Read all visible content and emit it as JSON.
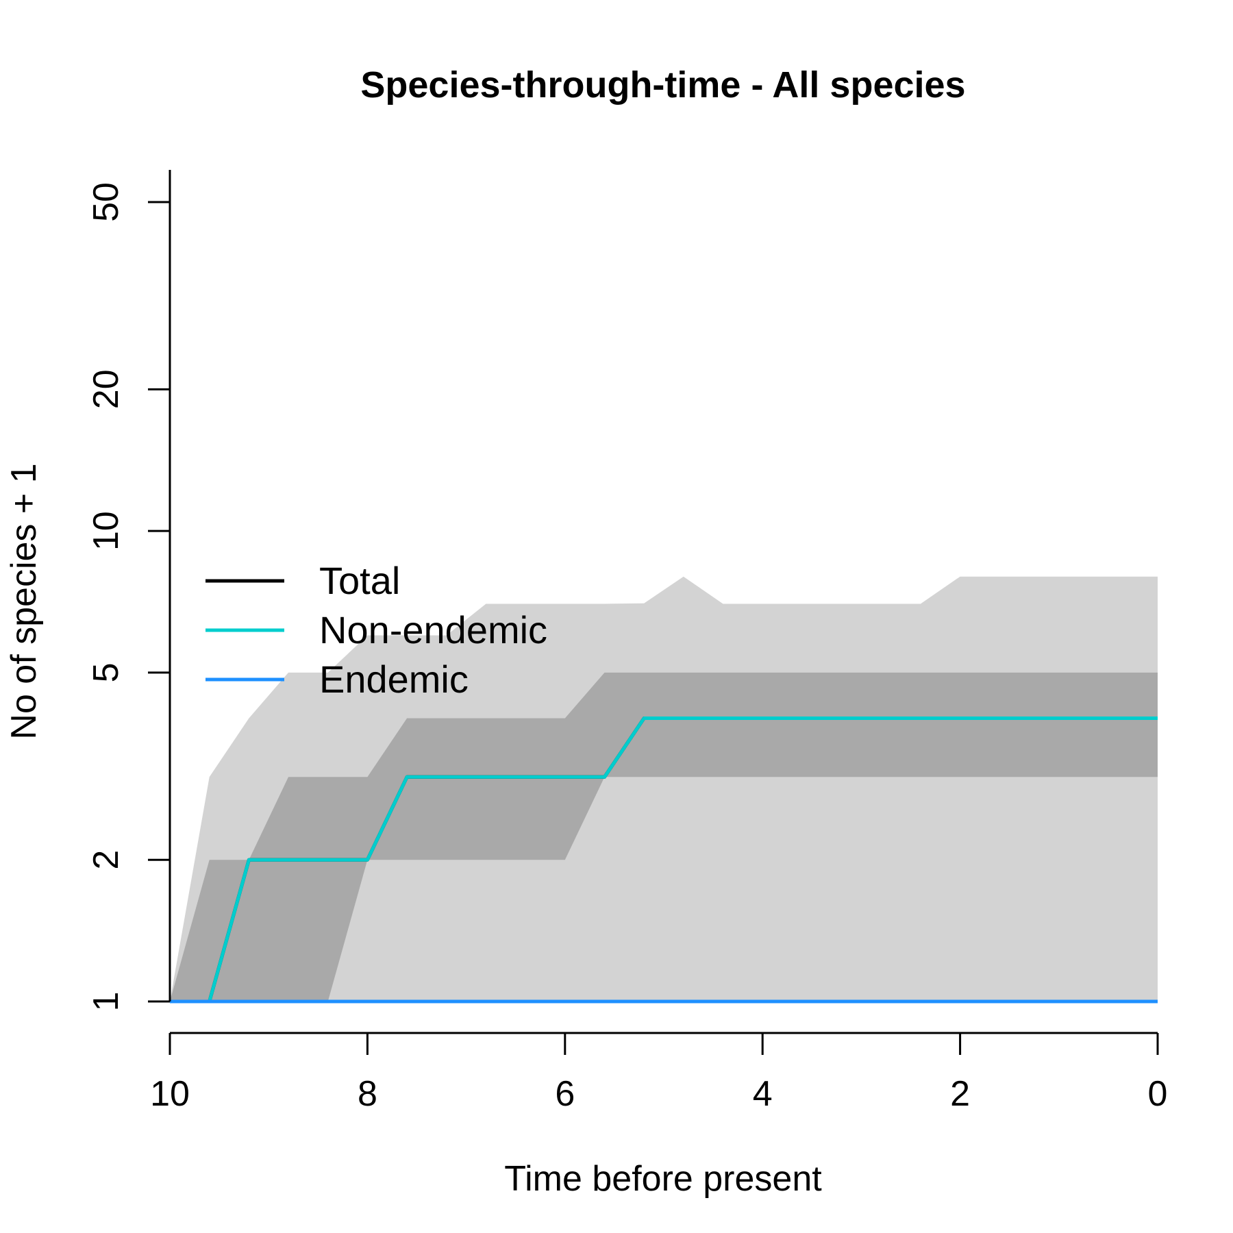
{
  "chart_data": {
    "type": "area",
    "title": "Species-through-time - All species",
    "xlabel": "Time before present",
    "ylabel": "No of species + 1",
    "xlim": [
      10,
      0
    ],
    "ylim": [
      1,
      50
    ],
    "y_scale": "log",
    "x_ticks": [
      10,
      8,
      6,
      4,
      2,
      0
    ],
    "x_tick_labels": [
      "10",
      "8",
      "6",
      "4",
      "2",
      "0"
    ],
    "y_ticks": [
      1,
      2,
      5,
      10,
      20,
      50
    ],
    "y_tick_labels": [
      "1",
      "2",
      "5",
      "10",
      "20",
      "50"
    ],
    "grid": false,
    "legend_position": "middle-left",
    "bands": [
      {
        "role": "outer",
        "color": "#d3d3d3",
        "x": [
          10,
          9.6,
          9.2,
          8.8,
          8.4,
          8.0,
          7.6,
          7.2,
          6.8,
          6.4,
          6.0,
          5.6,
          5.2,
          4.8,
          4.4,
          4.0,
          3.6,
          3.2,
          2.8,
          2.4,
          2.0,
          1.6,
          1.2,
          0.8,
          0.4,
          0.0
        ],
        "upper": [
          1,
          3,
          4,
          5,
          5,
          6,
          6,
          6,
          7,
          7,
          7,
          7,
          7.02,
          8,
          7,
          7,
          7,
          7,
          7,
          7,
          8,
          8,
          8,
          8,
          8,
          8
        ],
        "lower": [
          1,
          1,
          1,
          1,
          1,
          1,
          1,
          1,
          1,
          1,
          1,
          1,
          1,
          1,
          1,
          1,
          1,
          1,
          1,
          1,
          1,
          1,
          1,
          1,
          1,
          1
        ]
      },
      {
        "role": "inner",
        "color": "#a9a9a9",
        "x": [
          10,
          9.6,
          9.2,
          8.8,
          8.4,
          8.0,
          7.6,
          7.2,
          6.8,
          6.4,
          6.0,
          5.6,
          5.2,
          4.8,
          4.4,
          4.0,
          3.6,
          3.2,
          2.8,
          2.4,
          2.0,
          1.6,
          1.2,
          0.8,
          0.4,
          0.0
        ],
        "upper": [
          1,
          2,
          2,
          3,
          3,
          3,
          4,
          4,
          4,
          4,
          4,
          5,
          5,
          5,
          5,
          5,
          5,
          5,
          5,
          5,
          5,
          5,
          5,
          5,
          5,
          5
        ],
        "lower": [
          1,
          1,
          1,
          1,
          1,
          2,
          2,
          2,
          2,
          2,
          2,
          3,
          3,
          3,
          3,
          3,
          3,
          3,
          3,
          3,
          3,
          3,
          3,
          3,
          3,
          3
        ]
      }
    ],
    "series": [
      {
        "name": "Total",
        "color": "#000000",
        "x": [
          10,
          9.6,
          9.2,
          8.8,
          8.4,
          8.0,
          7.6,
          7.2,
          6.8,
          6.4,
          6.0,
          5.6,
          5.2,
          4.8,
          4.4,
          4.0,
          3.6,
          3.2,
          2.8,
          2.4,
          2.0,
          1.6,
          1.2,
          0.8,
          0.4,
          0.0
        ],
        "values": [
          1,
          1,
          2,
          2,
          2,
          2,
          3,
          3,
          3,
          3,
          3,
          3,
          4,
          4,
          4,
          4,
          4,
          4,
          4,
          4,
          4,
          4,
          4,
          4,
          4,
          4
        ]
      },
      {
        "name": "Non-endemic",
        "color": "#00cdcd",
        "x": [
          10,
          9.6,
          9.2,
          8.8,
          8.4,
          8.0,
          7.6,
          7.2,
          6.8,
          6.4,
          6.0,
          5.6,
          5.2,
          4.8,
          4.4,
          4.0,
          3.6,
          3.2,
          2.8,
          2.4,
          2.0,
          1.6,
          1.2,
          0.8,
          0.4,
          0.0
        ],
        "values": [
          1,
          1,
          2,
          2,
          2,
          2,
          3,
          3,
          3,
          3,
          3,
          3,
          4,
          4,
          4,
          4,
          4,
          4,
          4,
          4,
          4,
          4,
          4,
          4,
          4,
          4
        ]
      },
      {
        "name": "Endemic",
        "color": "#1e90ff",
        "x": [
          10,
          9.6,
          9.2,
          8.8,
          8.4,
          8.0,
          7.6,
          7.2,
          6.8,
          6.4,
          6.0,
          5.6,
          5.2,
          4.8,
          4.4,
          4.0,
          3.6,
          3.2,
          2.8,
          2.4,
          2.0,
          1.6,
          1.2,
          0.8,
          0.4,
          0.0
        ],
        "values": [
          1,
          1,
          1,
          1,
          1,
          1,
          1,
          1,
          1,
          1,
          1,
          1,
          1,
          1,
          1,
          1,
          1,
          1,
          1,
          1,
          1,
          1,
          1,
          1,
          1,
          1
        ]
      }
    ]
  }
}
